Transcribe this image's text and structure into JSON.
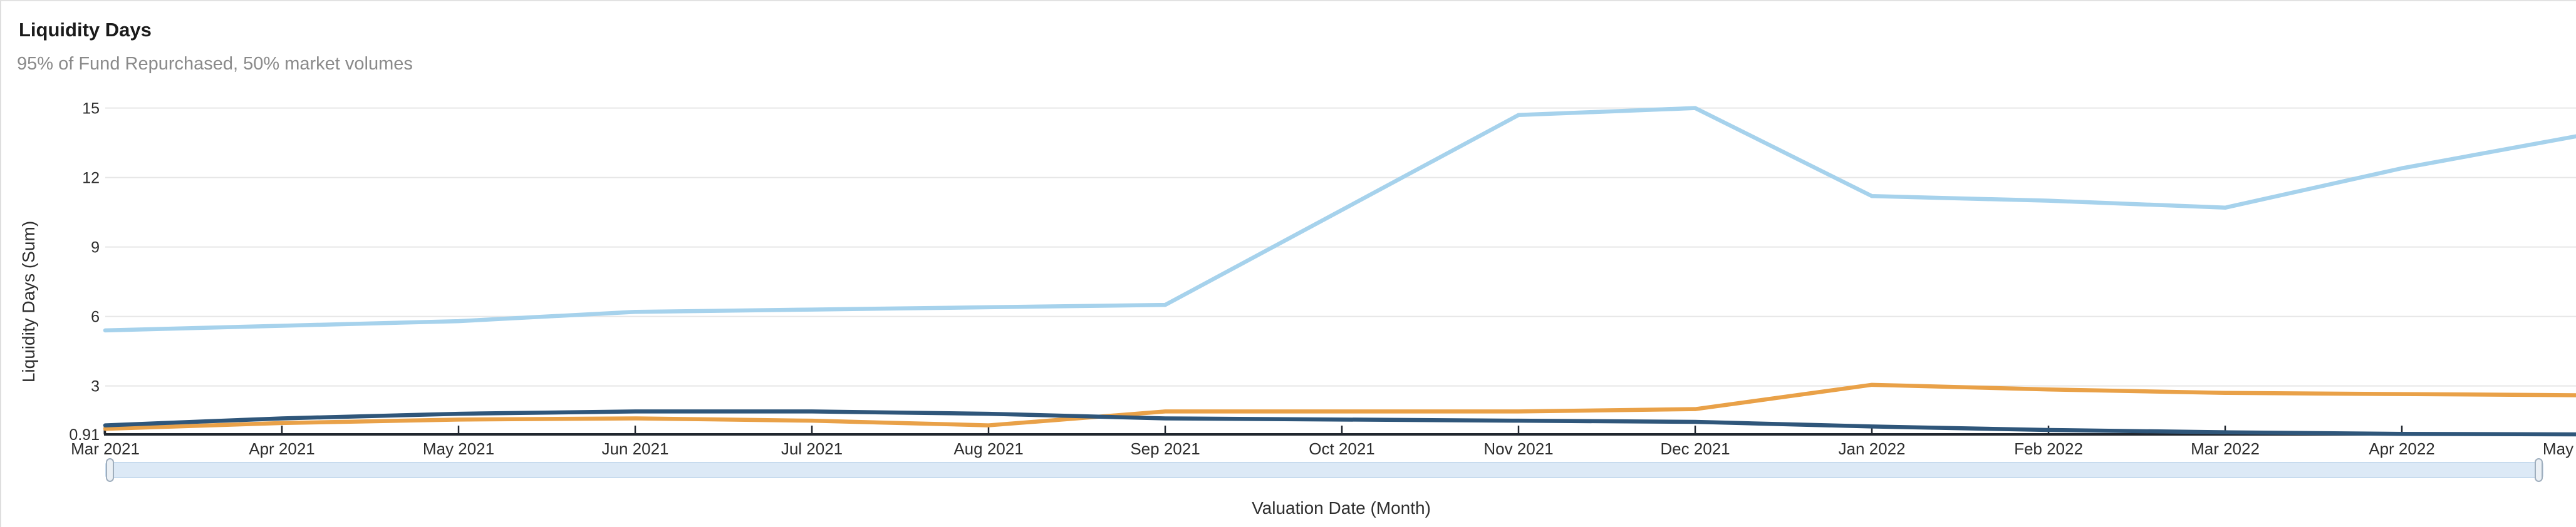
{
  "card": {
    "title": "Liquidity Days",
    "subtitle": "95% of Fund Repurchased, 50% market volumes"
  },
  "chart_data": {
    "type": "line",
    "title": "Liquidity Days",
    "subtitle": "95% of Fund Repurchased, 50% market volumes",
    "xlabel": "Valuation Date (Month)",
    "ylabel": "Liquidity Days (Sum)",
    "categories": [
      "Mar 2021",
      "Apr 2021",
      "May 2021",
      "Jun 2021",
      "Jul 2021",
      "Aug 2021",
      "Sep 2021",
      "Oct 2021",
      "Nov 2021",
      "Dec 2021",
      "Jan 2022",
      "Feb 2022",
      "Mar 2022",
      "Apr 2022",
      "May 2022"
    ],
    "series": [
      {
        "name": "light-blue",
        "color": "#a6d2ec",
        "values": [
          5.4,
          5.6,
          5.8,
          6.2,
          6.3,
          6.4,
          6.5,
          10.6,
          14.7,
          15.0,
          11.2,
          11.0,
          10.7,
          12.4,
          13.8
        ]
      },
      {
        "name": "orange",
        "color": "#e9a148",
        "values": [
          1.15,
          1.4,
          1.55,
          1.6,
          1.5,
          1.3,
          1.9,
          1.9,
          1.9,
          2.0,
          3.05,
          2.85,
          2.7,
          2.65,
          2.6
        ]
      },
      {
        "name": "navy",
        "color": "#2f567a",
        "values": [
          1.3,
          1.6,
          1.8,
          1.9,
          1.9,
          1.8,
          1.6,
          1.55,
          1.5,
          1.45,
          1.25,
          1.1,
          1.0,
          0.93,
          0.91
        ]
      }
    ],
    "ylim": [
      0.91,
      15
    ],
    "yticks": [
      {
        "value": 0.91,
        "label": "0.91"
      },
      {
        "value": 3,
        "label": "3"
      },
      {
        "value": 6,
        "label": "6"
      },
      {
        "value": 9,
        "label": "9"
      },
      {
        "value": 12,
        "label": "12"
      },
      {
        "value": 15,
        "label": "15"
      }
    ],
    "grid": "horizontal-only",
    "legend": "none",
    "x_axis_scrollbar": true
  },
  "colors": {
    "gridline": "#e6e6e6",
    "axis_line": "#20262e",
    "tick_label": "#2d2d2d",
    "scrollbar_track": "#dce9f6",
    "scrollbar_border": "#c7dbee",
    "scrollbar_handle_fill": "#ebf0f5",
    "scrollbar_handle_border": "#9faebd"
  }
}
